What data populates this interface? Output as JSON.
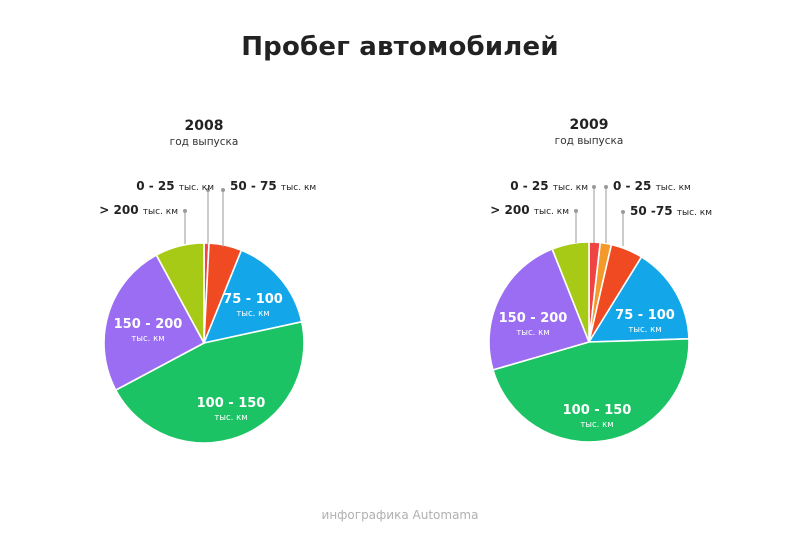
{
  "title": "Пробег автомобилей",
  "footer": "инфографика Automama",
  "colors": {
    "0-25": "#ef4444",
    "0-25b": "#f39a2b",
    "50-75": "#f04a23",
    "75-100": "#13a7ea",
    "100-150": "#1cc365",
    "150-200": "#9a6df2",
    ">200": "#a7ca16"
  },
  "chart_data": [
    {
      "type": "pie",
      "title": "2008",
      "subtitle": "год выпуска",
      "slices": [
        {
          "main": "0 - 25",
          "unit": "тыс. км",
          "value": 0.8,
          "color_key": "0-25"
        },
        {
          "main": "50 - 75",
          "unit": "тыс. км",
          "value": 5.3,
          "color_key": "50-75"
        },
        {
          "main": "75 - 100",
          "unit": "тыс. км",
          "value": 15.5,
          "color_key": "75-100"
        },
        {
          "main": "100 - 150",
          "unit": "тыс. км",
          "value": 45.6,
          "color_key": "100-150"
        },
        {
          "main": "150 - 200",
          "unit": "тыс. км",
          "value": 24.9,
          "color_key": "150-200"
        },
        {
          "main": "> 200",
          "unit": "тыс. км",
          "value": 7.9,
          "color_key": ">200"
        }
      ]
    },
    {
      "type": "pie",
      "title": "2009",
      "subtitle": "год выпуска",
      "slices": [
        {
          "main": "0 - 25",
          "unit": "тыс. км",
          "value": 1.8,
          "color_key": "0-25"
        },
        {
          "main": "0 - 25",
          "unit": "тыс. км",
          "value": 1.8,
          "color_key": "0-25b"
        },
        {
          "main": "50 -75",
          "unit": "тыс. км",
          "value": 5.2,
          "color_key": "50-75"
        },
        {
          "main": "75 - 100",
          "unit": "тыс. км",
          "value": 15.7,
          "color_key": "75-100"
        },
        {
          "main": "100 - 150",
          "unit": "тыс. км",
          "value": 46.0,
          "color_key": "100-150"
        },
        {
          "main": "150 - 200",
          "unit": "тыс. км",
          "value": 23.5,
          "color_key": "150-200"
        },
        {
          "main": "> 200",
          "unit": "тыс. км",
          "value": 6.0,
          "color_key": ">200"
        }
      ]
    }
  ]
}
